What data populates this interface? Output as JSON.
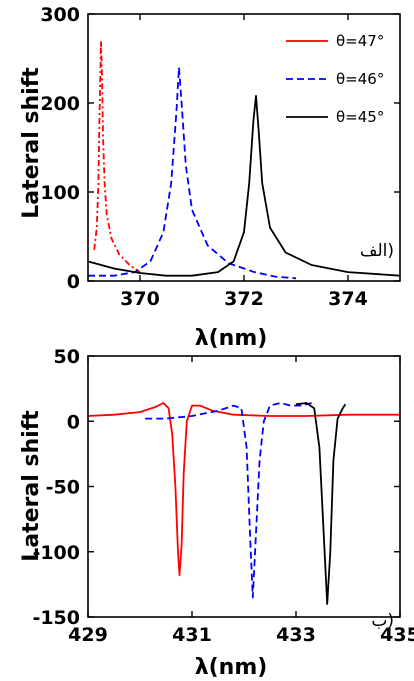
{
  "chart_data": [
    {
      "type": "line",
      "panel_tag": "الف)",
      "xlabel": "λ(nm)",
      "ylabel": "Lateral shift",
      "xlim": [
        369,
        375
      ],
      "ylim": [
        0,
        300
      ],
      "xticks": [
        370,
        372,
        374
      ],
      "yticks": [
        0,
        100,
        200,
        300
      ],
      "grid": false,
      "legend_position": "top-right",
      "series": [
        {
          "name": "θ=47°",
          "color": "#ff0000",
          "style": "dashdot",
          "x": [
            369.12,
            369.17,
            369.2,
            369.22,
            369.24,
            369.25,
            369.27,
            369.29,
            369.32,
            369.36,
            369.45,
            369.6,
            369.8,
            370.0
          ],
          "y": [
            35,
            60,
            110,
            180,
            240,
            270,
            230,
            160,
            110,
            75,
            48,
            30,
            18,
            10
          ]
        },
        {
          "name": "θ=46°",
          "color": "#0000ff",
          "style": "dashed",
          "x": [
            369.0,
            369.5,
            369.9,
            370.2,
            370.45,
            370.6,
            370.7,
            370.75,
            370.8,
            370.88,
            371.0,
            371.3,
            371.7,
            372.2,
            372.6,
            373.0
          ],
          "y": [
            6,
            6,
            10,
            22,
            55,
            110,
            190,
            240,
            200,
            130,
            80,
            40,
            20,
            10,
            5,
            3
          ]
        },
        {
          "name": "θ=45°",
          "color": "#000000",
          "style": "solid",
          "x": [
            369.0,
            369.5,
            370.0,
            370.5,
            371.0,
            371.5,
            371.8,
            372.0,
            372.1,
            372.18,
            372.23,
            372.28,
            372.35,
            372.5,
            372.8,
            373.3,
            374.0,
            375.0
          ],
          "y": [
            22,
            14,
            9,
            6,
            6,
            10,
            22,
            55,
            110,
            180,
            208,
            170,
            110,
            60,
            32,
            18,
            10,
            6
          ]
        }
      ]
    },
    {
      "type": "line",
      "panel_tag": "ب)",
      "xlabel": "λ(nm)",
      "ylabel": "Lateral shift",
      "xlim": [
        429,
        435
      ],
      "ylim": [
        -150,
        50
      ],
      "xticks": [
        429,
        431,
        433,
        435
      ],
      "yticks": [
        50,
        0,
        -50,
        -100,
        -150
      ],
      "grid": false,
      "series": [
        {
          "name": "θ=47°",
          "color": "#ff0000",
          "style": "solid",
          "x": [
            429.0,
            429.5,
            430.0,
            430.3,
            430.45,
            430.55,
            430.62,
            430.68,
            430.73,
            430.76,
            430.8,
            430.84,
            430.9,
            431.0,
            431.15,
            431.4,
            431.8,
            432.5,
            433.2,
            434.0,
            435.0
          ],
          "y": [
            4,
            5,
            7,
            11,
            14,
            10,
            -10,
            -50,
            -100,
            -118,
            -95,
            -40,
            0,
            12,
            12,
            8,
            5,
            4,
            4,
            5,
            5
          ]
        },
        {
          "name": "θ=46°",
          "color": "#0000ff",
          "style": "dashed",
          "x": [
            430.1,
            430.5,
            431.0,
            431.5,
            431.8,
            431.95,
            432.05,
            432.12,
            432.17,
            432.22,
            432.3,
            432.38,
            432.5,
            432.7,
            432.9,
            433.1,
            433.3
          ],
          "y": [
            2,
            2,
            4,
            8,
            12,
            10,
            -20,
            -90,
            -135,
            -95,
            -30,
            0,
            12,
            14,
            12,
            12,
            14
          ]
        },
        {
          "name": "θ=45°",
          "color": "#000000",
          "style": "solid",
          "x": [
            433.0,
            433.2,
            433.35,
            433.45,
            433.55,
            433.6,
            433.66,
            433.72,
            433.8,
            433.9,
            433.95
          ],
          "y": [
            13,
            14,
            10,
            -20,
            -100,
            -140,
            -100,
            -30,
            2,
            10,
            13
          ]
        }
      ]
    }
  ]
}
